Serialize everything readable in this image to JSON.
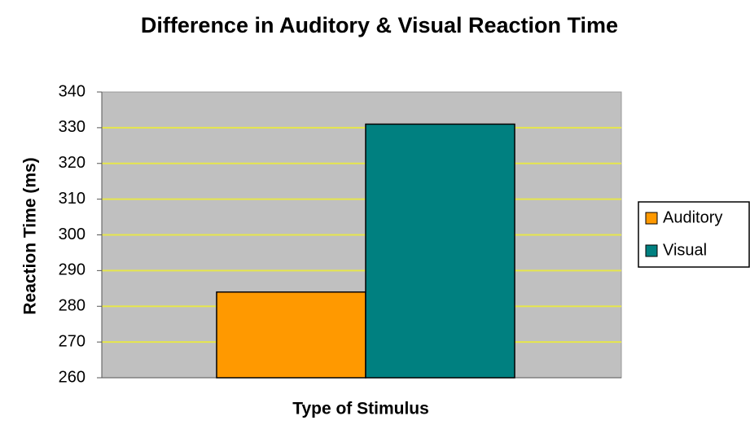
{
  "chart_data": {
    "type": "bar",
    "title": "Difference in Auditory & Visual Reaction Time",
    "x_label": "Type of Stimulus",
    "y_label": "Reaction Time (ms)",
    "categories": [
      null
    ],
    "series": [
      {
        "name": "Auditory",
        "color": "#ff9900",
        "values": [
          284
        ]
      },
      {
        "name": "Visual",
        "color": "#008080",
        "values": [
          331
        ]
      }
    ],
    "ylim": [
      260,
      340
    ],
    "yticks": [
      260,
      270,
      280,
      290,
      300,
      310,
      320,
      330,
      340
    ],
    "grid": true,
    "grid_color": "#e6e64c",
    "plot_background": "#c0c0c0",
    "legend": "right"
  }
}
